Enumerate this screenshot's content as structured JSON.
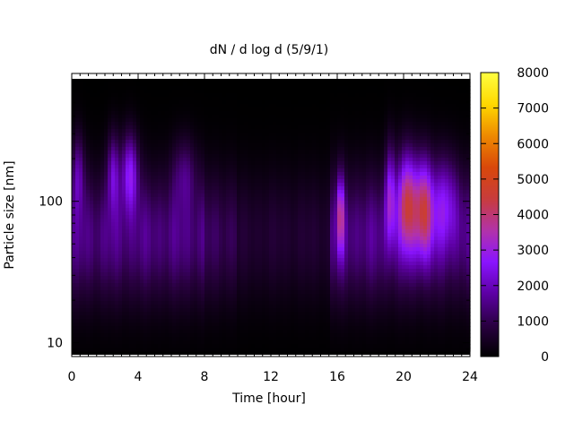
{
  "chart_data": {
    "type": "heatmap",
    "title": "dN / d log d (5/9/1)",
    "xlabel": "Time [hour]",
    "ylabel": "Particle size [nm]",
    "xlim": [
      0,
      24
    ],
    "ylim": [
      8,
      800
    ],
    "yscale": "log",
    "x_ticks": [
      0,
      4,
      8,
      12,
      16,
      20,
      24
    ],
    "x_tick_labels": [
      "0",
      "4",
      "8",
      "12",
      "16",
      "20",
      "24"
    ],
    "y_ticks": [
      10,
      100
    ],
    "y_tick_labels": [
      "10",
      "100"
    ],
    "colorbar": {
      "label": "",
      "range": [
        0,
        8000
      ],
      "ticks": [
        0,
        1000,
        2000,
        3000,
        4000,
        5000,
        6000,
        7000,
        8000
      ],
      "tick_labels": [
        "0",
        "1000",
        "2000",
        "3000",
        "4000",
        "5000",
        "6000",
        "7000",
        "8000"
      ],
      "colormap": [
        "#000000",
        "#2a0042",
        "#5d00a4",
        "#8a14ff",
        "#b233a8",
        "#c83c3c",
        "#d9480a",
        "#ee8a00",
        "#ffd800",
        "#ffff40"
      ]
    },
    "grid": false,
    "features": [
      {
        "t": 0.4,
        "d": 160,
        "w": 0.35,
        "s": 0.55,
        "amp": 1400
      },
      {
        "t": 2.5,
        "d": 160,
        "w": 0.35,
        "s": 0.55,
        "amp": 1700
      },
      {
        "t": 3.5,
        "d": 160,
        "w": 0.5,
        "s": 0.55,
        "amp": 2300
      },
      {
        "t": 6.8,
        "d": 160,
        "w": 0.7,
        "s": 0.5,
        "amp": 1000
      },
      {
        "t": 16.2,
        "d": 80,
        "w": 0.22,
        "s": 0.55,
        "amp": 2700
      },
      {
        "t": 19.2,
        "d": 110,
        "w": 0.3,
        "s": 0.7,
        "amp": 2300
      },
      {
        "t": 20.2,
        "d": 100,
        "w": 0.55,
        "s": 0.7,
        "amp": 3300
      },
      {
        "t": 21.2,
        "d": 90,
        "w": 0.55,
        "s": 0.7,
        "amp": 3300
      },
      {
        "t": 22.5,
        "d": 100,
        "w": 0.8,
        "s": 0.65,
        "amp": 1600
      }
    ],
    "background_level": 1700
  }
}
